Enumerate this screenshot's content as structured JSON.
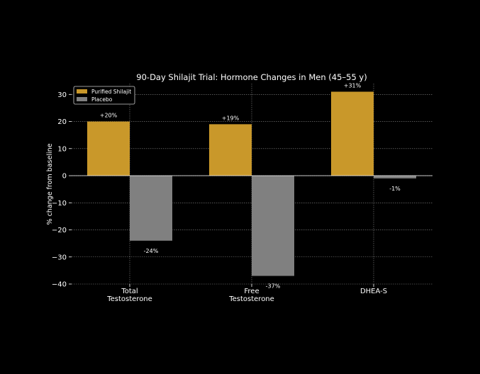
{
  "chart_data": {
    "type": "bar",
    "title": "90-Day Shilajit Trial: Hormone Changes in Men (45–55 y)",
    "xlabel": "",
    "ylabel": "% change from baseline",
    "categories": [
      [
        "Total",
        "Testosterone"
      ],
      [
        "Free",
        "Testosterone"
      ],
      [
        "DHEA-S"
      ]
    ],
    "series": [
      {
        "name": "Purified Shilajit",
        "values": [
          20,
          19,
          31
        ],
        "labels": [
          "+20%",
          "+19%",
          "+31%"
        ],
        "color": "#c9982a"
      },
      {
        "name": "Placebo",
        "values": [
          -24,
          -37,
          -1
        ],
        "labels": [
          "-24%",
          "-37%",
          "-1%"
        ],
        "color": "#808080"
      }
    ],
    "ylim": [
      -40,
      34
    ],
    "yticks": [
      {
        "value": 30,
        "label": "30"
      },
      {
        "value": 20,
        "label": "20"
      },
      {
        "value": 10,
        "label": "10"
      },
      {
        "value": 0,
        "label": "0"
      },
      {
        "value": -10,
        "label": "−10"
      },
      {
        "value": -20,
        "label": "−20"
      },
      {
        "value": -30,
        "label": "−30"
      },
      {
        "value": -40,
        "label": "−40"
      }
    ],
    "grid": true,
    "legend": "top-left",
    "background": "#000000"
  }
}
